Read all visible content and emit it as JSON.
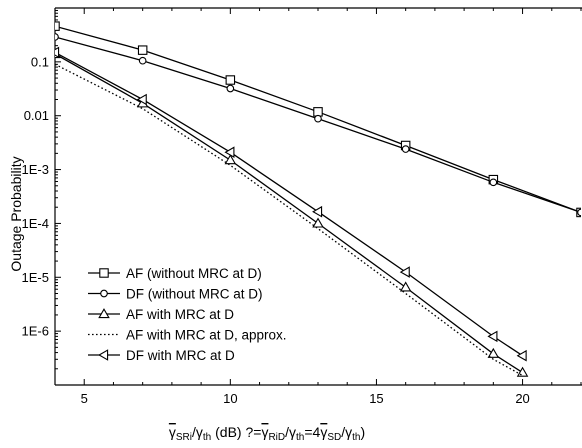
{
  "chart_data": {
    "type": "line",
    "ylabel": "Outage Probability",
    "xlabel": {
      "parts": [
        {
          "text": "γ",
          "over": true
        },
        {
          "text": "SRi",
          "sub": true
        },
        {
          "text": "/γ"
        },
        {
          "text": "th",
          "sub": true
        },
        {
          "text": " (dB) ?="
        },
        {
          "text": "γ",
          "over": true
        },
        {
          "text": "RiD",
          "sub": true
        },
        {
          "text": "/γ"
        },
        {
          "text": "th",
          "sub": true
        },
        {
          "text": "=4"
        },
        {
          "text": "γ",
          "over": true
        },
        {
          "text": "SD",
          "sub": true
        },
        {
          "text": "/γ"
        },
        {
          "text": "th",
          "sub": true
        },
        {
          "text": ")"
        }
      ]
    },
    "xlim": [
      4,
      22
    ],
    "ylim": [
      1e-07,
      1
    ],
    "yscale": "log",
    "x_ticks": [
      5,
      10,
      15,
      20
    ],
    "x_tick_labels": [
      "5",
      "10",
      "15",
      "20"
    ],
    "y_ticks": [
      1e-06,
      1e-05,
      0.0001,
      0.001,
      0.01,
      0.1
    ],
    "y_tick_labels": [
      "1E-6",
      "1E-5",
      "1E-4",
      "1E-3",
      "0.01",
      "0.1"
    ],
    "legend_position": "bottom-left",
    "series": [
      {
        "name": "AF (without MRC at D)",
        "marker": "square",
        "dash": "solid",
        "x": [
          4,
          7,
          10,
          13,
          16,
          19,
          22
        ],
        "y": [
          0.46,
          0.165,
          0.046,
          0.0118,
          0.0028,
          0.00065,
          0.00016
        ]
      },
      {
        "name": "DF (without MRC at D)",
        "marker": "circle",
        "dash": "solid",
        "x": [
          4,
          7,
          10,
          13,
          16,
          19,
          22
        ],
        "y": [
          0.29,
          0.105,
          0.032,
          0.0088,
          0.0024,
          0.00058,
          0.00016
        ]
      },
      {
        "name": "AF with MRC at D",
        "marker": "triangle-up",
        "dash": "solid",
        "x": [
          4,
          7,
          10,
          13,
          16,
          19,
          20
        ],
        "y": [
          0.14,
          0.017,
          0.0015,
          0.0001,
          6.5e-06,
          3.8e-07,
          1.7e-07
        ]
      },
      {
        "name": "AF with MRC at D, approx.",
        "marker": "none",
        "dash": "dotted",
        "x": [
          4,
          7,
          10,
          13,
          16,
          19,
          20
        ],
        "y": [
          0.09,
          0.0135,
          0.0012,
          8e-05,
          5e-06,
          3e-07,
          1.5e-07
        ]
      },
      {
        "name": "DF with MRC at D",
        "marker": "triangle-left",
        "dash": "solid",
        "x": [
          4,
          7,
          10,
          13,
          16,
          19,
          20
        ],
        "y": [
          0.15,
          0.02,
          0.0021,
          0.000165,
          1.25e-05,
          8e-07,
          3.5e-07
        ]
      }
    ]
  }
}
